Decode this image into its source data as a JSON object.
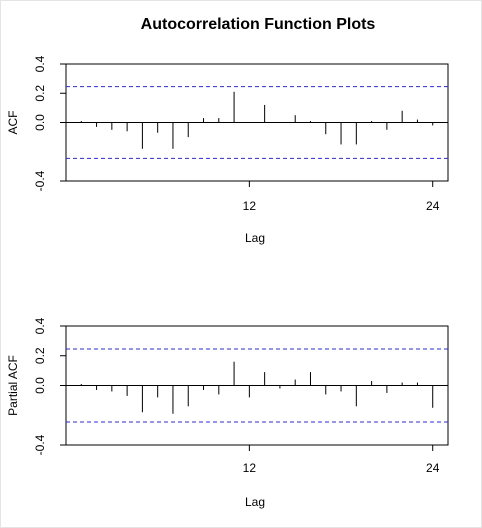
{
  "title": "Autocorrelation Function Plots",
  "chart_data": [
    {
      "type": "bar",
      "subtype": "acf",
      "title": "Autocorrelation Function Plots",
      "xlabel": "Lag",
      "ylabel": "ACF",
      "xlim": [
        0,
        25
      ],
      "ylim": [
        -0.4,
        0.4
      ],
      "x_ticks": [
        12,
        24
      ],
      "y_ticks": [
        "-0.4",
        "0.0",
        "0.2",
        "0.4"
      ],
      "confidence_bound": 0.245,
      "lags": [
        1,
        2,
        3,
        4,
        5,
        6,
        7,
        8,
        9,
        10,
        11,
        12,
        13,
        14,
        15,
        16,
        17,
        18,
        19,
        20,
        21,
        22,
        23,
        24
      ],
      "values": [
        0.01,
        -0.03,
        -0.05,
        -0.06,
        -0.18,
        -0.07,
        -0.18,
        -0.1,
        0.03,
        0.03,
        0.21,
        0.0,
        0.12,
        0.0,
        0.05,
        0.01,
        -0.08,
        -0.15,
        -0.15,
        0.01,
        -0.05,
        0.08,
        0.02,
        -0.02
      ]
    },
    {
      "type": "bar",
      "subtype": "pacf",
      "title": "",
      "xlabel": "Lag",
      "ylabel": "Partial ACF",
      "xlim": [
        0,
        25
      ],
      "ylim": [
        -0.4,
        0.4
      ],
      "x_ticks": [
        12,
        24
      ],
      "y_ticks": [
        "-0.4",
        "0.0",
        "0.2",
        "0.4"
      ],
      "confidence_bound": 0.245,
      "lags": [
        1,
        2,
        3,
        4,
        5,
        6,
        7,
        8,
        9,
        10,
        11,
        12,
        13,
        14,
        15,
        16,
        17,
        18,
        19,
        20,
        21,
        22,
        23,
        24
      ],
      "values": [
        0.01,
        -0.03,
        -0.04,
        -0.07,
        -0.18,
        -0.08,
        -0.19,
        -0.14,
        -0.03,
        -0.06,
        0.16,
        -0.08,
        0.09,
        -0.02,
        0.04,
        0.09,
        -0.06,
        -0.04,
        -0.14,
        0.03,
        -0.05,
        0.02,
        0.02,
        -0.15
      ]
    }
  ]
}
